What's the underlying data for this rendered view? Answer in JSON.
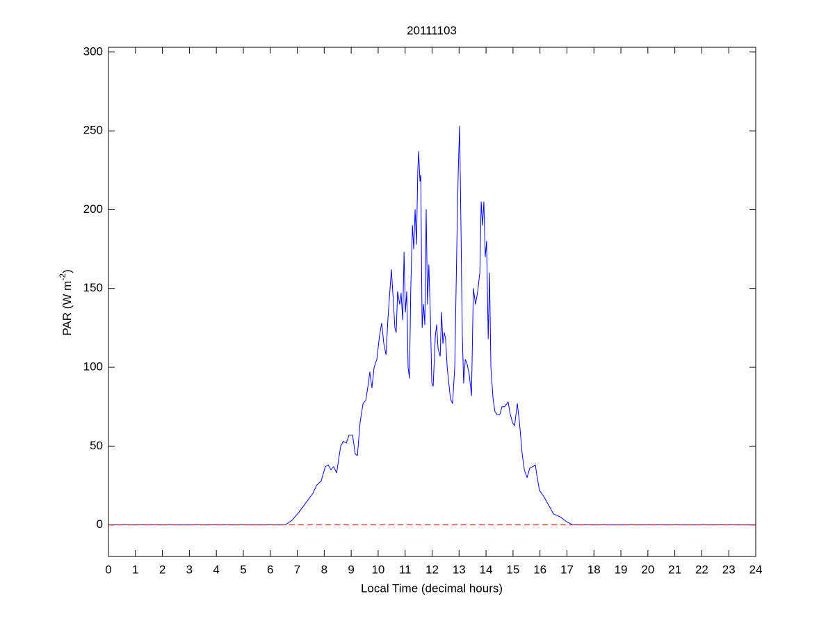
{
  "chart_data": {
    "type": "line",
    "title": "20111103",
    "xlabel": "Local Time (decimal hours)",
    "ylabel": [
      "PAR (W m",
      "-2",
      ")"
    ],
    "x": [
      0,
      6.55,
      6.81,
      7.06,
      7.32,
      7.58,
      7.71,
      7.89,
      8.04,
      8.15,
      8.25,
      8.35,
      8.46,
      8.61,
      8.71,
      8.82,
      8.92,
      9.05,
      9.15,
      9.23,
      9.33,
      9.44,
      9.54,
      9.64,
      9.69,
      9.77,
      9.85,
      9.95,
      10.05,
      10.13,
      10.21,
      10.29,
      10.36,
      10.44,
      10.49,
      10.57,
      10.62,
      10.67,
      10.72,
      10.8,
      10.85,
      10.91,
      10.96,
      11.01,
      11.06,
      11.11,
      11.16,
      11.21,
      11.27,
      11.32,
      11.37,
      11.42,
      11.47,
      11.5,
      11.55,
      11.58,
      11.63,
      11.68,
      11.73,
      11.78,
      11.83,
      11.88,
      11.94,
      11.99,
      12.04,
      12.12,
      12.17,
      12.22,
      12.3,
      12.35,
      12.4,
      12.45,
      12.5,
      12.56,
      12.68,
      12.76,
      12.84,
      12.92,
      12.97,
      13.02,
      13.07,
      13.12,
      13.17,
      13.23,
      13.3,
      13.38,
      13.46,
      13.53,
      13.61,
      13.69,
      13.77,
      13.82,
      13.87,
      13.92,
      13.97,
      14.02,
      14.08,
      14.13,
      14.18,
      14.26,
      14.33,
      14.41,
      14.51,
      14.59,
      14.69,
      14.82,
      14.9,
      14.98,
      15.06,
      15.16,
      15.24,
      15.34,
      15.42,
      15.52,
      15.62,
      15.73,
      15.83,
      15.88,
      15.98,
      16.14,
      16.34,
      16.5,
      16.76,
      16.99,
      17.22,
      24
    ],
    "values": [
      0,
      0,
      3,
      8,
      14,
      20,
      25,
      28,
      37,
      38,
      35,
      37,
      33,
      50,
      53,
      52,
      57,
      57,
      45,
      44,
      65,
      77,
      79,
      90,
      97,
      87,
      100,
      105,
      120,
      128,
      115,
      108,
      130,
      150,
      162,
      140,
      125,
      122,
      148,
      140,
      147,
      130,
      173,
      135,
      148,
      100,
      93,
      150,
      190,
      175,
      200,
      178,
      225,
      237,
      218,
      222,
      125,
      140,
      127,
      200,
      140,
      165,
      130,
      90,
      88,
      120,
      127,
      112,
      107,
      135,
      115,
      122,
      118,
      100,
      80,
      77,
      100,
      180,
      225,
      253,
      190,
      120,
      90,
      105,
      102,
      95,
      82,
      150,
      140,
      148,
      160,
      205,
      190,
      205,
      170,
      180,
      118,
      160,
      100,
      80,
      72,
      70,
      70,
      75,
      75,
      78,
      70,
      65,
      63,
      77,
      65,
      45,
      35,
      30,
      36,
      37,
      38,
      32,
      22,
      18,
      12,
      7,
      5,
      2,
      0,
      0
    ],
    "color": "#0000ff",
    "reference_line": {
      "value": 0,
      "color": "#ff0000",
      "dash": "dashed"
    },
    "xlim": [
      0,
      24
    ],
    "xticks": [
      0,
      1,
      2,
      3,
      4,
      5,
      6,
      7,
      8,
      9,
      10,
      11,
      12,
      13,
      14,
      15,
      16,
      17,
      18,
      19,
      20,
      21,
      22,
      23,
      24
    ],
    "ylim": [
      -20,
      303
    ],
    "yticks": [
      0,
      50,
      100,
      150,
      200,
      250,
      300
    ],
    "grid": false
  }
}
